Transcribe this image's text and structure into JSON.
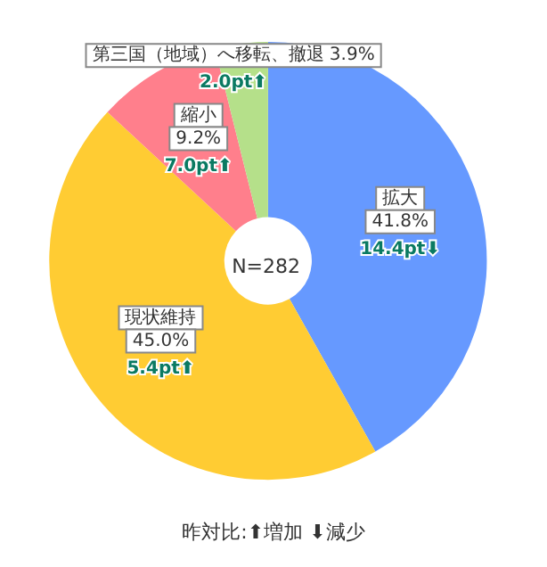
{
  "chart_data": {
    "type": "donut",
    "title": "N=282",
    "categories": [
      "拡大",
      "現状維持",
      "縮小",
      "第三国（地域）へ移転、撤退"
    ],
    "values": [
      41.8,
      45.0,
      9.2,
      3.9
    ],
    "value_labels": [
      "41.8%",
      "45.0%",
      "9.2%",
      "3.9%"
    ],
    "colors": [
      "#6699ff",
      "#ffcc33",
      "#ff7f8c",
      "#b5e08a"
    ],
    "annotations": [
      {
        "text": "14.4pt⬇",
        "x": "拡大"
      },
      {
        "text": "5.4pt⬆",
        "x": "現状維持"
      },
      {
        "text": "7.0pt⬆",
        "x": "縮小"
      },
      {
        "text": "2.0pt⬆",
        "x": "第三国（地域）へ移転、撤退"
      },
      "昨対比:⬆増加 ⬇減少"
    ],
    "legend": false
  }
}
